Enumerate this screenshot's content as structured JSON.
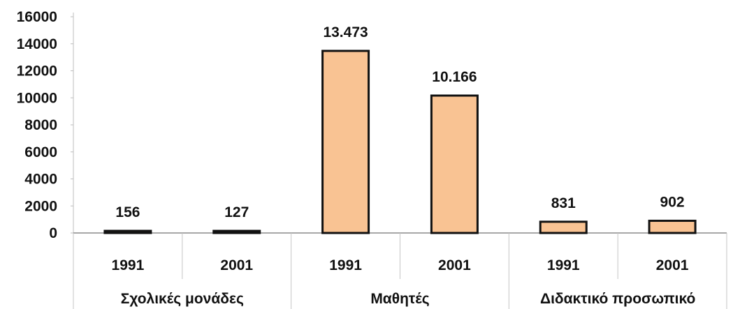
{
  "chart_data": {
    "type": "bar",
    "title": "",
    "xlabel": "",
    "ylabel": "",
    "ylim": [
      0,
      16000
    ],
    "yticks": [
      0,
      2000,
      4000,
      6000,
      8000,
      10000,
      12000,
      14000,
      16000
    ],
    "grid": false,
    "legend": "none",
    "bar_color": "#f9c393",
    "bar_edge_color": "#111111",
    "categories": [
      "1991",
      "2001",
      "1991",
      "2001",
      "1991",
      "2001"
    ],
    "groups": [
      {
        "label": "Σχολικές μονάδες",
        "categories": [
          "1991",
          "2001"
        ]
      },
      {
        "label": "Μαθητές",
        "categories": [
          "1991",
          "2001"
        ]
      },
      {
        "label": "Διδακτικό προσωπικό",
        "categories": [
          "1991",
          "2001"
        ]
      }
    ],
    "values": [
      156,
      127,
      13473,
      10166,
      831,
      902
    ],
    "data_labels": [
      "156",
      "127",
      "13.473",
      "10.166",
      "831",
      "902"
    ]
  }
}
